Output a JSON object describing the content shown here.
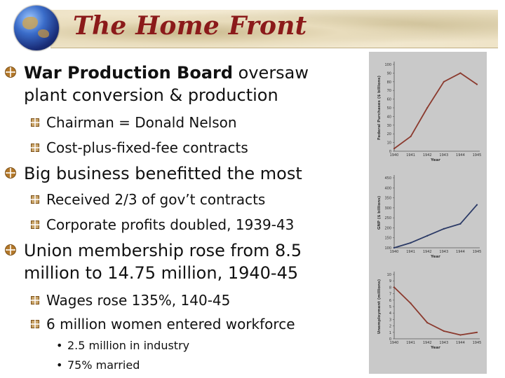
{
  "header": {
    "title": "The Home Front"
  },
  "bullets": {
    "wpb": {
      "bold": "War Production Board",
      "rest": " oversaw",
      "line2": "plant conversion & production"
    },
    "chairman": "Chairman = Donald Nelson",
    "cost_plus": "Cost-plus-fixed-fee contracts",
    "big_business": "Big business benefitted the most",
    "received": "Received 2/3 of gov’t contracts",
    "profits": "Corporate profits doubled, 1939-43",
    "union_line1": "Union membership rose from 8.5",
    "union_line2": "million to 14.75 million, 1940-45",
    "wages": "Wages rose 135%, 140-45",
    "women": "6 million women entered workforce",
    "industry": "2.5 million in industry",
    "married": "75% married"
  },
  "chart_data": [
    {
      "type": "line",
      "x": [
        "1940",
        "1941",
        "1942",
        "1943",
        "1944",
        "1945"
      ],
      "y": [
        3,
        17,
        50,
        80,
        90,
        77
      ],
      "ylabel": "Federal Purchases ($ billions)",
      "xlabel": "Year",
      "yticks": [
        0,
        10,
        20,
        30,
        40,
        50,
        60,
        70,
        80,
        90,
        100
      ],
      "ylim": [
        0,
        100
      ],
      "color": "#8b3a2e"
    },
    {
      "type": "line",
      "x": [
        "1940",
        "1941",
        "1942",
        "1943",
        "1944",
        "1945"
      ],
      "y": [
        100,
        125,
        160,
        195,
        220,
        315
      ],
      "ylabel": "GNP ($ billions)",
      "xlabel": "Year",
      "yticks": [
        100,
        150,
        200,
        250,
        300,
        350,
        400,
        450
      ],
      "ylim": [
        100,
        450
      ],
      "color": "#2b3a66"
    },
    {
      "type": "line",
      "x": [
        "1940",
        "1941",
        "1942",
        "1943",
        "1944",
        "1945"
      ],
      "y": [
        8,
        5.5,
        2.5,
        1.2,
        0.6,
        1
      ],
      "ylabel": "Unemployment (millions)",
      "xlabel": "Year",
      "yticks": [
        0,
        1,
        2,
        3,
        4,
        5,
        6,
        7,
        8,
        9,
        10
      ],
      "ylim": [
        0,
        10
      ],
      "color": "#8b3a2e"
    }
  ],
  "colors": {
    "title": "#8b1a1a",
    "marker": "#b3782a",
    "panel": "#c9c9c9"
  },
  "icons": {
    "globe": "globe-icon",
    "main_bullet": "circle-cross-bullet-icon",
    "sub_bullet": "square-cross-bullet-icon"
  }
}
